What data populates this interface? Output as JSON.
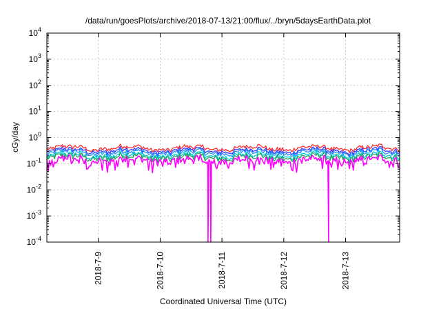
{
  "chart_data": {
    "type": "line",
    "title": "/data/run/goesPlots/archive/2018-07-13/21:00/flux/../bryn/5daysEarthData.plot",
    "xlabel": "Coordinated Universal Time (UTC)",
    "ylabel": "cGy/day",
    "x_domain": [
      "2018-07-08T04:00",
      "2018-07-13T21:00"
    ],
    "x_ticks": [
      {
        "date": "2018-07-09",
        "label": "2018-7-9"
      },
      {
        "date": "2018-07-10",
        "label": "2018-7-10"
      },
      {
        "date": "2018-07-11",
        "label": "2018-7-11"
      },
      {
        "date": "2018-07-12",
        "label": "2018-7-12"
      },
      {
        "date": "2018-07-13",
        "label": "2018-7-13"
      }
    ],
    "y_scale": "log",
    "ylim": [
      0.0001,
      10000
    ],
    "y_ticks": [
      {
        "base": "10",
        "exp": "-4"
      },
      {
        "base": "10",
        "exp": "-3"
      },
      {
        "base": "10",
        "exp": "-2"
      },
      {
        "base": "10",
        "exp": "-1"
      },
      {
        "base": "10",
        "exp": "0"
      },
      {
        "base": "10",
        "exp": "1"
      },
      {
        "base": "10",
        "exp": "2"
      },
      {
        "base": "10",
        "exp": "3"
      },
      {
        "base": "10",
        "exp": "4"
      }
    ],
    "grid": true,
    "series": [
      {
        "color": "#ff2a2a",
        "base": 0.4
      },
      {
        "color": "#3a3aff",
        "base": 0.32
      },
      {
        "color": "#1e90ff",
        "base": 0.27
      },
      {
        "color": "#00d5d5",
        "base": 0.21
      },
      {
        "color": "#2e9e5e",
        "base": 0.18
      },
      {
        "color": "#ff00ff",
        "base": 0.14
      }
    ],
    "dips": [
      {
        "date": "2018-07-10T18:35",
        "value": 0.0001
      },
      {
        "date": "2018-07-10T19:40",
        "value": 0.0001
      },
      {
        "date": "2018-07-12T17:25",
        "value": 0.0001
      }
    ]
  }
}
